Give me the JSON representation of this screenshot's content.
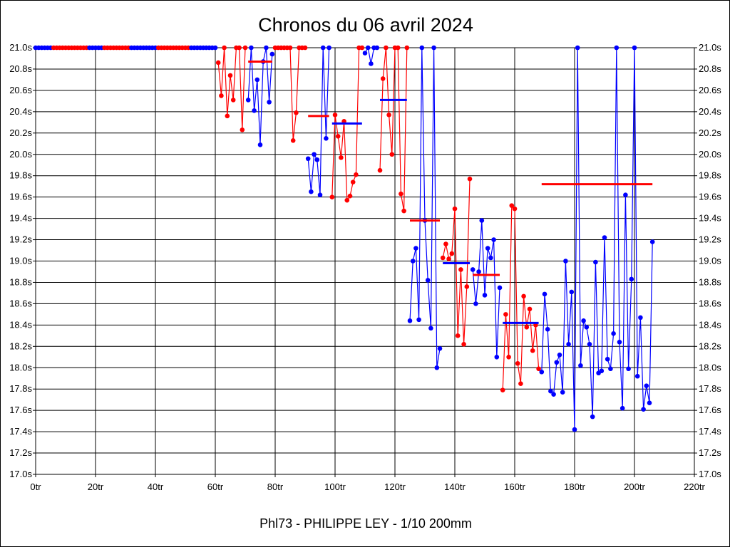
{
  "chart_data": {
    "type": "line",
    "title": "Chronos du 06 avril 2024",
    "footer": "Phl73 - PHILIPPE LEY - 1/10 200mm",
    "xlim": [
      0,
      220
    ],
    "ylim": [
      17.0,
      21.0
    ],
    "grid": true,
    "x_ticks": [
      0,
      20,
      40,
      60,
      80,
      100,
      120,
      140,
      160,
      180,
      200,
      220
    ],
    "x_tick_labels": [
      "0tr",
      "20tr",
      "40tr",
      "60tr",
      "80tr",
      "100tr",
      "120tr",
      "140tr",
      "160tr",
      "180tr",
      "200tr",
      "220tr"
    ],
    "y_ticks": [
      17.0,
      17.2,
      17.4,
      17.6,
      17.8,
      18.0,
      18.2,
      18.4,
      18.6,
      18.8,
      19.0,
      19.2,
      19.4,
      19.6,
      19.8,
      20.0,
      20.2,
      20.4,
      20.6,
      20.8,
      21.0
    ],
    "y_tick_labels": [
      "17.0s",
      "17.2s",
      "17.4s",
      "17.6s",
      "17.8s",
      "18.0s",
      "18.2s",
      "18.4s",
      "18.6s",
      "18.8s",
      "19.0s",
      "19.2s",
      "19.4s",
      "19.6s",
      "19.8s",
      "20.0s",
      "20.2s",
      "20.4s",
      "20.6s",
      "20.8s",
      "21.0s"
    ],
    "colors": {
      "blue": "#0000ff",
      "red": "#ff0000"
    },
    "sessions": [
      {
        "color": "blue",
        "start": 0,
        "values": [
          21,
          21,
          21,
          21,
          21,
          21
        ]
      },
      {
        "color": "red",
        "start": 6,
        "values": [
          21,
          21,
          21,
          21,
          21,
          21,
          21,
          21,
          21,
          21,
          21,
          21
        ]
      },
      {
        "color": "blue",
        "start": 18,
        "values": [
          21,
          21,
          21,
          21,
          21
        ]
      },
      {
        "color": "red",
        "start": 23,
        "values": [
          21,
          21,
          21,
          21,
          21,
          21,
          21,
          21,
          21
        ]
      },
      {
        "color": "blue",
        "start": 32,
        "values": [
          21,
          21,
          21,
          21,
          21,
          21,
          21,
          21,
          21
        ]
      },
      {
        "color": "red",
        "start": 41,
        "values": [
          21,
          21,
          21,
          21,
          21,
          21,
          21,
          21,
          21,
          21,
          21
        ]
      },
      {
        "color": "blue",
        "start": 52,
        "values": [
          21,
          21,
          21,
          21,
          21,
          21,
          21,
          21,
          21
        ]
      },
      {
        "color": "red",
        "start": 61,
        "values": [
          20.86,
          20.55,
          21.0,
          20.36,
          20.74,
          20.51,
          21.0,
          21.0,
          20.23,
          21.0
        ]
      },
      {
        "color": "blue",
        "start": 71,
        "values": [
          20.51,
          21.0,
          20.41,
          20.7,
          20.09,
          20.87,
          21.0,
          20.49,
          20.94
        ]
      },
      {
        "color": "red",
        "start": 80,
        "values": [
          21,
          21,
          21,
          21,
          21,
          21,
          20.13,
          20.39,
          21,
          21,
          21
        ]
      },
      {
        "color": "blue",
        "start": 91,
        "values": [
          19.96,
          19.65,
          20.0,
          19.95,
          19.62,
          21.0,
          20.15,
          21.0
        ]
      },
      {
        "color": "red",
        "start": 99,
        "values": [
          19.6,
          20.37,
          20.17,
          19.97,
          20.31,
          19.57,
          19.61,
          19.74,
          19.81,
          21.0,
          21.0
        ]
      },
      {
        "color": "blue",
        "start": 110,
        "values": [
          20.95,
          21.0,
          20.85,
          21.0,
          21.0
        ]
      },
      {
        "color": "red",
        "start": 115,
        "values": [
          19.85,
          20.71,
          21.0,
          20.37,
          20.0,
          21.0,
          21.0,
          19.63,
          19.47,
          21.0
        ]
      },
      {
        "color": "blue",
        "start": 125,
        "values": [
          18.44,
          19.0,
          19.12,
          18.45,
          21.0,
          19.38,
          18.82,
          18.37,
          21.0,
          18.0,
          18.18
        ]
      },
      {
        "color": "red",
        "start": 136,
        "values": [
          19.03,
          19.16,
          19.02,
          19.07,
          19.49,
          18.3,
          18.92,
          18.22,
          18.76,
          19.77
        ]
      },
      {
        "color": "blue",
        "start": 146,
        "values": [
          18.92,
          18.6,
          18.9,
          19.38,
          18.68,
          19.12,
          19.03,
          19.2,
          18.1,
          18.75
        ]
      },
      {
        "color": "red",
        "start": 156,
        "values": [
          17.79,
          18.5,
          18.1,
          19.52,
          19.49,
          18.04,
          17.85,
          18.67,
          18.38,
          18.55,
          18.16,
          18.4,
          17.99
        ]
      },
      {
        "color": "blue",
        "start": 169,
        "values": [
          17.96,
          18.69,
          18.36,
          17.78,
          17.75,
          18.05,
          18.12,
          17.77,
          19.0,
          18.22,
          18.71,
          17.42,
          21.0,
          18.02,
          18.44,
          18.38,
          18.22,
          17.54,
          18.99,
          17.95,
          17.97,
          19.22,
          18.08,
          17.99,
          18.32,
          21.0,
          18.24,
          17.62,
          19.62,
          17.99,
          18.83,
          21.0,
          17.92,
          18.47,
          17.61,
          17.83,
          17.67,
          19.18
        ]
      }
    ],
    "averages": [
      {
        "color": "red",
        "from": 71,
        "to": 79,
        "value": 20.87
      },
      {
        "color": "red",
        "from": 91,
        "to": 98,
        "value": 20.36
      },
      {
        "color": "blue",
        "from": 99,
        "to": 109,
        "value": 20.29
      },
      {
        "color": "blue",
        "from": 115,
        "to": 124,
        "value": 20.51
      },
      {
        "color": "red",
        "from": 125,
        "to": 135,
        "value": 19.38
      },
      {
        "color": "blue",
        "from": 136,
        "to": 145,
        "value": 18.98
      },
      {
        "color": "red",
        "from": 146,
        "to": 155,
        "value": 18.87
      },
      {
        "color": "blue",
        "from": 156,
        "to": 168,
        "value": 18.42
      },
      {
        "color": "red",
        "from": 169,
        "to": 206,
        "value": 19.72
      }
    ]
  }
}
